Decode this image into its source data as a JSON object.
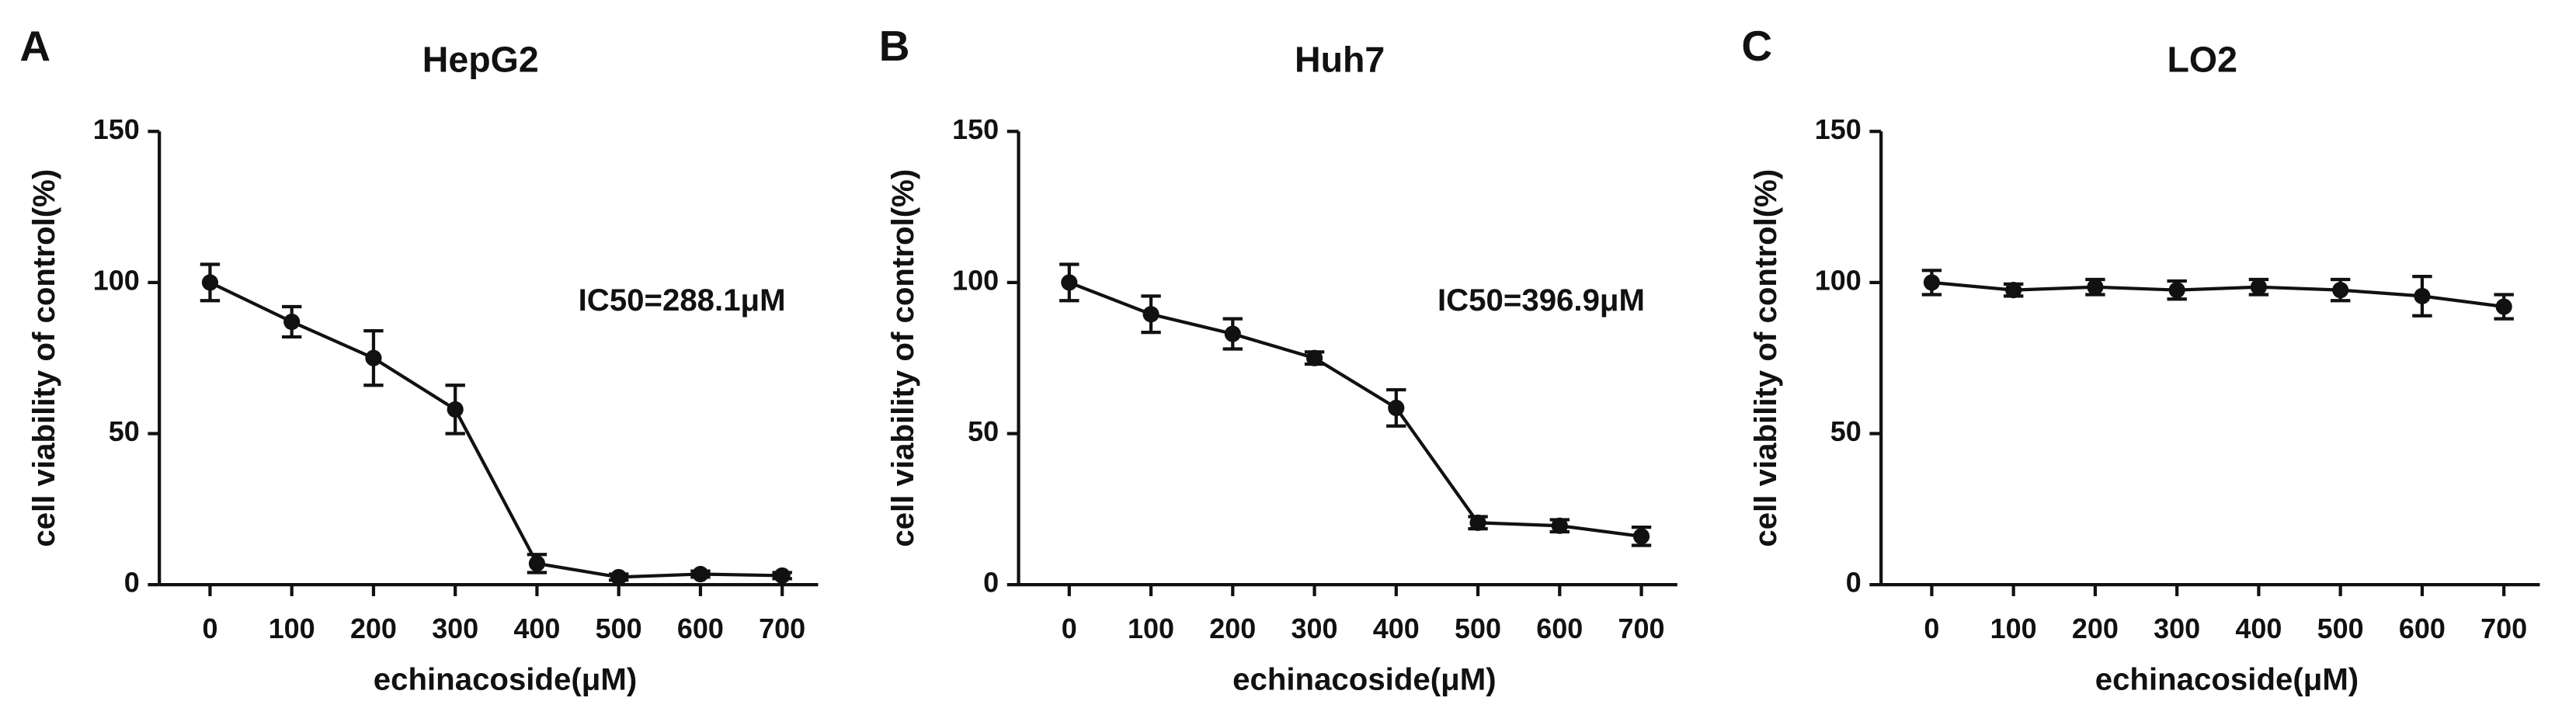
{
  "chart_data": [
    {
      "type": "line",
      "panel": "A",
      "title": "HepG2",
      "annotation": "IC50=288.1μM",
      "xlabel": "echinacoside(μM)",
      "ylabel": "cell viability of control(%)",
      "x": [
        0,
        100,
        200,
        300,
        400,
        500,
        600,
        700
      ],
      "series": [
        {
          "color": "#111111",
          "values": [
            100,
            87,
            75,
            58,
            7,
            2.5,
            3.5,
            3
          ],
          "errors": [
            6,
            5,
            9,
            8,
            3,
            1,
            1,
            1
          ]
        }
      ],
      "xlim": [
        -62,
        744
      ],
      "xticks": [
        0,
        100,
        200,
        300,
        400,
        500,
        600,
        700
      ],
      "ylim": [
        0,
        150
      ],
      "yticks": [
        0,
        50,
        100,
        150
      ]
    },
    {
      "type": "line",
      "panel": "B",
      "title": "Huh7",
      "annotation": "IC50=396.9μM",
      "xlabel": "echinacoside(μM)",
      "ylabel": "cell viability of control(%)",
      "x": [
        0,
        100,
        200,
        300,
        400,
        500,
        600,
        700
      ],
      "series": [
        {
          "color": "#111111",
          "values": [
            100,
            89.5,
            83,
            75,
            58.5,
            20.5,
            19.5,
            16
          ],
          "errors": [
            6,
            6,
            5,
            2,
            6,
            2,
            2,
            3
          ]
        }
      ],
      "xlim": [
        -62,
        744
      ],
      "xticks": [
        0,
        100,
        200,
        300,
        400,
        500,
        600,
        700
      ],
      "ylim": [
        0,
        150
      ],
      "yticks": [
        0,
        50,
        100,
        150
      ]
    },
    {
      "type": "line",
      "panel": "C",
      "title": "LO2",
      "xlabel": "echinacoside(μM)",
      "ylabel": "cell viability of control(%)",
      "x": [
        0,
        100,
        200,
        300,
        400,
        500,
        600,
        700
      ],
      "series": [
        {
          "color": "#111111",
          "values": [
            100,
            97.5,
            98.5,
            97.5,
            98.5,
            97.5,
            95.5,
            92
          ],
          "errors": [
            4,
            2,
            2.5,
            3,
            2.5,
            3.5,
            6.5,
            4
          ]
        }
      ],
      "xlim": [
        -62,
        744
      ],
      "xticks": [
        0,
        100,
        200,
        300,
        400,
        500,
        600,
        700
      ],
      "ylim": [
        0,
        150
      ],
      "yticks": [
        0,
        50,
        100,
        150
      ]
    }
  ]
}
